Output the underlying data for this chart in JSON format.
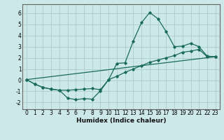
{
  "xlabel": "Humidex (Indice chaleur)",
  "bg_color": "#cce8e8",
  "grid_color": "#b0d0d0",
  "line_color": "#1a6b5a",
  "xlim": [
    -0.5,
    23.5
  ],
  "ylim": [
    -2.6,
    6.8
  ],
  "xticks": [
    0,
    1,
    2,
    3,
    4,
    5,
    6,
    7,
    8,
    9,
    10,
    11,
    12,
    13,
    14,
    15,
    16,
    17,
    18,
    19,
    20,
    21,
    22,
    23
  ],
  "yticks": [
    -2,
    -1,
    0,
    1,
    2,
    3,
    4,
    5,
    6
  ],
  "line1_x": [
    0,
    1,
    2,
    3,
    4,
    5,
    6,
    7,
    8,
    9,
    10,
    11,
    12,
    13,
    14,
    15,
    16,
    17,
    18,
    19,
    20,
    21,
    22,
    23
  ],
  "line1_y": [
    0.05,
    -0.35,
    -0.65,
    -0.8,
    -0.9,
    -1.6,
    -1.75,
    -1.65,
    -1.7,
    -0.95,
    0.05,
    1.5,
    1.55,
    3.5,
    5.15,
    6.05,
    5.5,
    4.35,
    3.0,
    3.05,
    3.3,
    3.0,
    2.15,
    2.1
  ],
  "line2_x": [
    0,
    1,
    2,
    3,
    4,
    5,
    6,
    7,
    8,
    9,
    10,
    11,
    12,
    13,
    14,
    15,
    16,
    17,
    18,
    19,
    20,
    21,
    22,
    23
  ],
  "line2_y": [
    0.05,
    -0.35,
    -0.65,
    -0.8,
    -0.9,
    -0.9,
    -0.85,
    -0.8,
    -0.75,
    -0.85,
    0.05,
    0.35,
    0.7,
    1.0,
    1.3,
    1.6,
    1.8,
    2.0,
    2.2,
    2.5,
    2.6,
    2.75,
    2.1,
    2.1
  ],
  "line3_x": [
    0,
    23
  ],
  "line3_y": [
    0.05,
    2.1
  ],
  "spine_color": "#666666",
  "tick_fontsize": 5.5,
  "xlabel_fontsize": 6.5
}
